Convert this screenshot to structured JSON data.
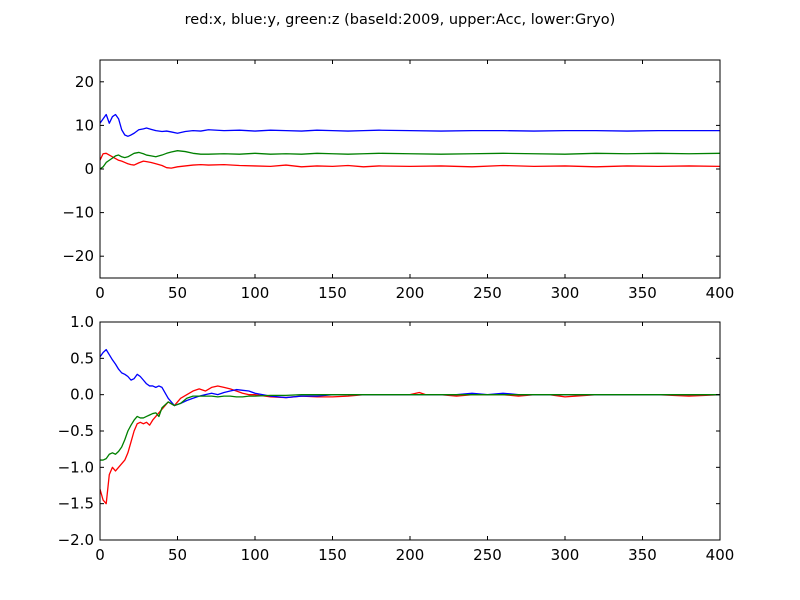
{
  "title": "red:x, blue:y, green:z (baseId:2009, upper:Acc, lower:Gryo)",
  "chart_data": [
    {
      "type": "line",
      "title": "",
      "xlabel": "",
      "ylabel": "",
      "xlim": [
        0,
        400
      ],
      "ylim": [
        -25,
        25
      ],
      "xticks": [
        "0",
        "50",
        "100",
        "150",
        "200",
        "250",
        "300",
        "350",
        "400"
      ],
      "yticks": [
        "20",
        "10",
        "0",
        "−10",
        "−20"
      ],
      "xtick_values": [
        0,
        50,
        100,
        150,
        200,
        250,
        300,
        350,
        400
      ],
      "ytick_values": [
        20,
        10,
        0,
        -10,
        -20
      ],
      "grid": false,
      "series": [
        {
          "color": "#ff0000",
          "x": [
            0,
            2,
            4,
            6,
            8,
            10,
            12,
            14,
            16,
            18,
            20,
            22,
            25,
            28,
            30,
            33,
            36,
            40,
            43,
            46,
            50,
            55,
            60,
            65,
            70,
            80,
            90,
            100,
            110,
            120,
            130,
            140,
            150,
            160,
            170,
            180,
            200,
            220,
            240,
            260,
            280,
            300,
            320,
            340,
            360,
            380,
            400
          ],
          "values": [
            2.0,
            3.5,
            3.6,
            3.2,
            2.8,
            2.4,
            2.0,
            1.8,
            1.5,
            1.2,
            1.0,
            0.9,
            1.4,
            1.8,
            1.7,
            1.5,
            1.2,
            0.8,
            0.3,
            0.2,
            0.5,
            0.7,
            0.9,
            1.0,
            0.9,
            1.0,
            0.8,
            0.7,
            0.6,
            0.9,
            0.5,
            0.7,
            0.6,
            0.8,
            0.5,
            0.7,
            0.6,
            0.7,
            0.5,
            0.8,
            0.6,
            0.7,
            0.5,
            0.7,
            0.6,
            0.7,
            0.6
          ]
        },
        {
          "color": "#0000ff",
          "x": [
            0,
            2,
            4,
            6,
            8,
            10,
            12,
            14,
            16,
            18,
            20,
            22,
            25,
            28,
            30,
            33,
            36,
            40,
            43,
            46,
            50,
            55,
            60,
            65,
            70,
            80,
            90,
            100,
            110,
            120,
            130,
            140,
            150,
            160,
            170,
            180,
            200,
            220,
            240,
            260,
            280,
            300,
            320,
            340,
            360,
            380,
            400
          ],
          "values": [
            10.5,
            11.5,
            12.5,
            10.5,
            12.0,
            12.5,
            11.5,
            9.0,
            7.8,
            7.5,
            7.8,
            8.2,
            9.0,
            9.2,
            9.4,
            9.1,
            8.8,
            8.6,
            8.7,
            8.5,
            8.2,
            8.6,
            8.8,
            8.7,
            9.0,
            8.8,
            8.9,
            8.7,
            8.9,
            8.8,
            8.7,
            8.9,
            8.8,
            8.7,
            8.8,
            8.9,
            8.8,
            8.7,
            8.8,
            8.8,
            8.7,
            8.8,
            8.8,
            8.7,
            8.8,
            8.8,
            8.8
          ]
        },
        {
          "color": "#008000",
          "x": [
            0,
            2,
            4,
            6,
            8,
            10,
            12,
            14,
            16,
            18,
            20,
            22,
            25,
            28,
            30,
            33,
            36,
            40,
            43,
            46,
            50,
            55,
            60,
            65,
            70,
            80,
            90,
            100,
            110,
            120,
            130,
            140,
            150,
            160,
            170,
            180,
            200,
            220,
            240,
            260,
            280,
            300,
            320,
            340,
            360,
            380,
            400
          ],
          "values": [
            0.0,
            0.5,
            1.5,
            2.0,
            2.5,
            3.0,
            3.2,
            2.8,
            2.6,
            2.8,
            3.2,
            3.6,
            3.8,
            3.5,
            3.2,
            3.0,
            2.8,
            3.2,
            3.6,
            3.9,
            4.2,
            4.0,
            3.6,
            3.4,
            3.4,
            3.5,
            3.4,
            3.6,
            3.4,
            3.5,
            3.4,
            3.6,
            3.5,
            3.4,
            3.5,
            3.6,
            3.5,
            3.4,
            3.5,
            3.6,
            3.5,
            3.4,
            3.6,
            3.5,
            3.6,
            3.5,
            3.6
          ]
        }
      ]
    },
    {
      "type": "line",
      "title": "",
      "xlabel": "",
      "ylabel": "",
      "xlim": [
        0,
        400
      ],
      "ylim": [
        -2.0,
        1.0
      ],
      "xticks": [
        "0",
        "50",
        "100",
        "150",
        "200",
        "250",
        "300",
        "350",
        "400"
      ],
      "yticks": [
        "1.0",
        "0.5",
        "0.0",
        "−0.5",
        "−1.0",
        "−1.5",
        "−2.0"
      ],
      "xtick_values": [
        0,
        50,
        100,
        150,
        200,
        250,
        300,
        350,
        400
      ],
      "ytick_values": [
        1.0,
        0.5,
        0.0,
        -0.5,
        -1.0,
        -1.5,
        -2.0
      ],
      "grid": false,
      "series": [
        {
          "color": "#ff0000",
          "x": [
            0,
            2,
            4,
            6,
            8,
            10,
            12,
            14,
            16,
            18,
            20,
            22,
            24,
            26,
            28,
            30,
            32,
            34,
            36,
            38,
            40,
            44,
            48,
            52,
            56,
            60,
            64,
            68,
            72,
            76,
            80,
            84,
            88,
            92,
            96,
            100,
            110,
            120,
            130,
            140,
            150,
            160,
            170,
            180,
            190,
            200,
            206,
            210,
            220,
            230,
            240,
            250,
            260,
            270,
            280,
            290,
            300,
            320,
            340,
            360,
            380,
            400
          ],
          "values": [
            -1.3,
            -1.45,
            -1.5,
            -1.1,
            -1.0,
            -1.05,
            -1.0,
            -0.95,
            -0.9,
            -0.8,
            -0.65,
            -0.5,
            -0.4,
            -0.38,
            -0.4,
            -0.38,
            -0.42,
            -0.35,
            -0.3,
            -0.25,
            -0.2,
            -0.1,
            -0.15,
            -0.05,
            0.0,
            0.05,
            0.08,
            0.05,
            0.1,
            0.12,
            0.1,
            0.08,
            0.05,
            0.02,
            0.0,
            0.0,
            -0.03,
            -0.04,
            -0.02,
            -0.03,
            -0.03,
            -0.02,
            0.0,
            0.0,
            0.0,
            0.0,
            0.03,
            0.0,
            0.0,
            -0.02,
            0.0,
            0.0,
            0.0,
            -0.02,
            0.0,
            0.0,
            -0.03,
            0.0,
            0.0,
            0.0,
            -0.02,
            0.0
          ]
        },
        {
          "color": "#0000ff",
          "x": [
            0,
            2,
            4,
            6,
            8,
            10,
            12,
            14,
            16,
            18,
            20,
            22,
            24,
            26,
            28,
            30,
            32,
            34,
            36,
            38,
            40,
            44,
            48,
            52,
            56,
            60,
            64,
            68,
            72,
            76,
            80,
            84,
            88,
            92,
            96,
            100,
            110,
            120,
            130,
            140,
            150,
            160,
            170,
            180,
            190,
            200,
            206,
            210,
            220,
            230,
            240,
            250,
            260,
            270,
            280,
            290,
            300,
            320,
            340,
            360,
            380,
            400
          ],
          "values": [
            0.52,
            0.58,
            0.62,
            0.55,
            0.48,
            0.42,
            0.35,
            0.3,
            0.28,
            0.25,
            0.2,
            0.22,
            0.28,
            0.25,
            0.2,
            0.15,
            0.12,
            0.12,
            0.1,
            0.12,
            0.1,
            -0.05,
            -0.15,
            -0.12,
            -0.08,
            -0.05,
            -0.02,
            0.0,
            0.02,
            0.0,
            0.03,
            0.05,
            0.07,
            0.06,
            0.05,
            0.02,
            -0.02,
            -0.04,
            -0.02,
            -0.02,
            0.0,
            0.0,
            0.0,
            0.0,
            0.0,
            0.0,
            0.0,
            0.0,
            0.0,
            0.0,
            0.02,
            0.0,
            0.02,
            0.0,
            0.0,
            0.0,
            0.0,
            0.0,
            0.0,
            0.0,
            0.0,
            0.0
          ]
        },
        {
          "color": "#008000",
          "x": [
            0,
            2,
            4,
            6,
            8,
            10,
            12,
            14,
            16,
            18,
            20,
            22,
            24,
            26,
            28,
            30,
            32,
            34,
            36,
            38,
            40,
            44,
            48,
            52,
            56,
            60,
            64,
            68,
            72,
            76,
            80,
            84,
            88,
            92,
            96,
            100,
            110,
            120,
            130,
            140,
            150,
            160,
            170,
            180,
            190,
            200,
            206,
            210,
            220,
            230,
            240,
            250,
            260,
            270,
            280,
            290,
            300,
            320,
            340,
            360,
            380,
            400
          ],
          "values": [
            -0.9,
            -0.9,
            -0.88,
            -0.82,
            -0.8,
            -0.82,
            -0.78,
            -0.72,
            -0.62,
            -0.5,
            -0.42,
            -0.35,
            -0.3,
            -0.32,
            -0.32,
            -0.3,
            -0.28,
            -0.26,
            -0.25,
            -0.3,
            -0.18,
            -0.1,
            -0.15,
            -0.12,
            -0.05,
            -0.02,
            -0.02,
            -0.02,
            -0.02,
            -0.03,
            -0.02,
            -0.02,
            -0.03,
            -0.03,
            -0.02,
            -0.02,
            -0.01,
            -0.01,
            0.0,
            0.0,
            0.0,
            0.0,
            0.0,
            0.0,
            0.0,
            0.0,
            0.0,
            0.0,
            0.0,
            0.0,
            0.0,
            0.0,
            0.0,
            0.0,
            0.0,
            0.0,
            0.0,
            0.0,
            0.0,
            0.0,
            0.0,
            0.0
          ]
        }
      ]
    }
  ]
}
